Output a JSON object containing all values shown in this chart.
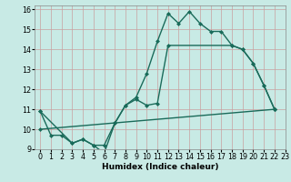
{
  "xlabel": "Humidex (Indice chaleur)",
  "bg_color": "#c8eae5",
  "grid_color": "#c8a0a0",
  "line_color": "#1a6b5a",
  "xlim": [
    -0.5,
    23
  ],
  "ylim": [
    9,
    16.2
  ],
  "xticks": [
    0,
    1,
    2,
    3,
    4,
    5,
    6,
    7,
    8,
    9,
    10,
    11,
    12,
    13,
    14,
    15,
    16,
    17,
    18,
    19,
    20,
    21,
    22,
    23
  ],
  "yticks": [
    9,
    10,
    11,
    12,
    13,
    14,
    15,
    16
  ],
  "line1_x": [
    0,
    1,
    2,
    3,
    4,
    5,
    6,
    7,
    8,
    9,
    10,
    11,
    12,
    13,
    14,
    15,
    16,
    17,
    18,
    19,
    20,
    21,
    22
  ],
  "line1_y": [
    10.9,
    9.7,
    9.7,
    9.3,
    9.5,
    9.2,
    8.8,
    10.3,
    11.2,
    11.6,
    12.8,
    14.4,
    15.8,
    15.3,
    15.9,
    15.3,
    14.9,
    14.9,
    14.2,
    14.0,
    13.3,
    12.2,
    11.0
  ],
  "line2_x": [
    0,
    3,
    4,
    5,
    6,
    7,
    8,
    9,
    10,
    11,
    12,
    18,
    19,
    20,
    21,
    22
  ],
  "line2_y": [
    10.9,
    9.3,
    9.5,
    9.2,
    9.2,
    10.3,
    11.2,
    11.5,
    11.2,
    11.3,
    14.2,
    14.2,
    14.0,
    13.3,
    12.2,
    11.0
  ],
  "line3_x": [
    0,
    22
  ],
  "line3_y": [
    10.0,
    11.0
  ],
  "marker_size": 2.5,
  "line_width": 1.0
}
